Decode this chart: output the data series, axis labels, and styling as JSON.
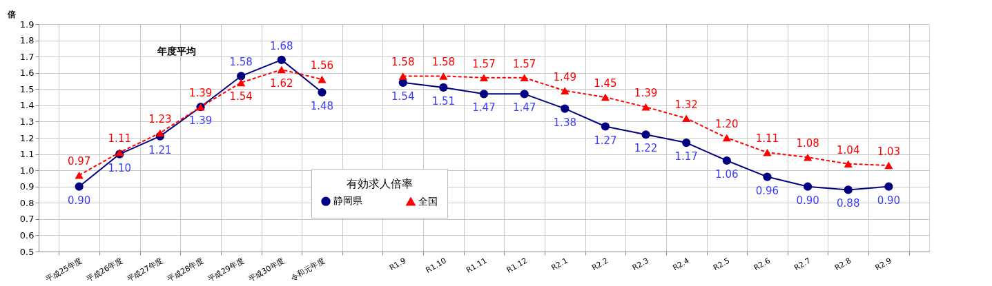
{
  "chart_data": {
    "type": "line",
    "ylabel": "倍",
    "legend_title": "有効求人倍率",
    "legend": "bottom",
    "grid": true,
    "annotations": [
      "年度平均"
    ],
    "categories": [
      "平成25年度",
      "平成26年度",
      "平成27年度",
      "平成28年度",
      "平成29年度",
      "平成30年度",
      "令和元年度",
      null,
      "R1.9",
      "R1.10",
      "R1.11",
      "R1.12",
      "R2.1",
      "R2.2",
      "R2.3",
      "R2.4",
      "R2.5",
      "R2.6",
      "R2.7",
      "R2.8",
      "R2.9"
    ],
    "ylim": [
      0.5,
      1.9
    ],
    "yticks": [
      0.5,
      0.6,
      0.7,
      0.8,
      0.9,
      {
        "value": 1.0,
        "label": "1.0"
      },
      1.1,
      1.2,
      1.3,
      1.4,
      1.5,
      1.6,
      1.7,
      1.8,
      1.9
    ],
    "series": [
      {
        "name": "静岡県",
        "color": "#000080",
        "marker": "circle",
        "line_style": "solid",
        "values": [
          0.9,
          1.1,
          1.21,
          1.39,
          1.58,
          1.68,
          1.48,
          null,
          1.54,
          1.51,
          1.47,
          1.47,
          1.38,
          1.27,
          1.22,
          1.17,
          1.06,
          0.96,
          0.9,
          0.88,
          0.9
        ],
        "value_labels": [
          "0.90",
          "1.10",
          "1.21",
          "1.39",
          "1.58",
          "1.68",
          "1.48",
          null,
          "1.54",
          "1.51",
          "1.47",
          "1.47",
          "1.38",
          "1.27",
          "1.22",
          "1.17",
          "1.06",
          "0.96",
          "0.90",
          "0.88",
          "0.90"
        ]
      },
      {
        "name": "全国",
        "color": "#ff0000",
        "marker": "triangle",
        "line_style": "dashed",
        "values": [
          0.97,
          1.11,
          1.23,
          1.39,
          1.54,
          1.62,
          1.56,
          null,
          1.58,
          1.58,
          1.57,
          1.57,
          1.49,
          1.45,
          1.39,
          1.32,
          1.2,
          1.11,
          1.08,
          1.04,
          1.03
        ],
        "value_labels": [
          "0.97",
          "1.11",
          "1.23",
          "1.39",
          "1.54",
          "1.62",
          "1.56",
          null,
          "1.58",
          "1.58",
          "1.57",
          "1.57",
          "1.49",
          "1.45",
          "1.39",
          "1.32",
          "1.20",
          "1.11",
          "1.08",
          "1.04",
          "1.03"
        ]
      }
    ]
  }
}
